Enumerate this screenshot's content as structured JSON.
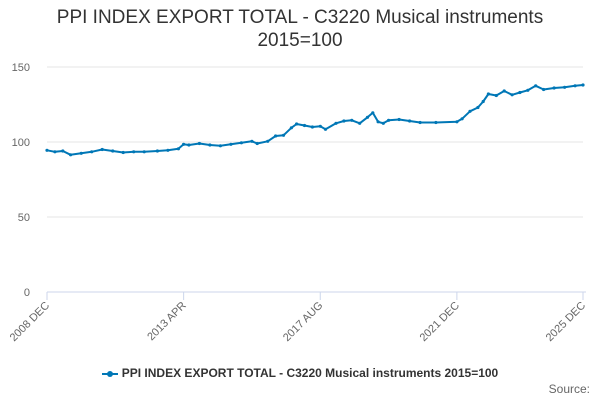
{
  "chart_data": {
    "type": "line",
    "title_line1": "PPI INDEX EXPORT TOTAL - C3220 Musical instruments",
    "title_line2": "2015=100",
    "xlabel": "",
    "ylabel": "",
    "ylim": [
      0,
      150
    ],
    "yticks": [
      0,
      50,
      100,
      150
    ],
    "xticks": [
      "2008 DEC",
      "2013 APR",
      "2017 AUG",
      "2021 DEC",
      "2025 DEC"
    ],
    "x_range": [
      "2008 DEC",
      "2025 DEC"
    ],
    "grid": "horizontal",
    "legend_position": "bottom",
    "series": [
      {
        "name": "PPI INDEX EXPORT TOTAL - C3220 Musical instruments 2015=100",
        "color": "#0077b6",
        "points": [
          [
            "2008 DEC",
            94.5
          ],
          [
            "2009 MAR",
            93.5
          ],
          [
            "2009 JUN",
            94.0
          ],
          [
            "2009 SEP",
            91.5
          ],
          [
            "2010 JAN",
            92.5
          ],
          [
            "2010 MAY",
            93.5
          ],
          [
            "2010 SEP",
            95.0
          ],
          [
            "2011 JAN",
            94.0
          ],
          [
            "2011 MAY",
            93.0
          ],
          [
            "2011 SEP",
            93.5
          ],
          [
            "2012 JAN",
            93.5
          ],
          [
            "2012 JUN",
            94.0
          ],
          [
            "2012 OCT",
            94.5
          ],
          [
            "2013 FEB",
            95.5
          ],
          [
            "2013 APR",
            98.5
          ],
          [
            "2013 JUN",
            98.0
          ],
          [
            "2013 OCT",
            99.0
          ],
          [
            "2014 FEB",
            98.0
          ],
          [
            "2014 JUN",
            97.5
          ],
          [
            "2014 OCT",
            98.5
          ],
          [
            "2015 FEB",
            99.5
          ],
          [
            "2015 JUN",
            100.5
          ],
          [
            "2015 AUG",
            99.0
          ],
          [
            "2015 DEC",
            100.5
          ],
          [
            "2016 MAR",
            104.0
          ],
          [
            "2016 JUN",
            104.5
          ],
          [
            "2016 SEP",
            109.5
          ],
          [
            "2016 NOV",
            112.0
          ],
          [
            "2017 FEB",
            111.0
          ],
          [
            "2017 MAY",
            110.0
          ],
          [
            "2017 AUG",
            110.5
          ],
          [
            "2017 OCT",
            108.5
          ],
          [
            "2018 FEB",
            112.5
          ],
          [
            "2018 MAY",
            114.0
          ],
          [
            "2018 AUG",
            114.5
          ],
          [
            "2018 NOV",
            112.5
          ],
          [
            "2019 FEB",
            116.5
          ],
          [
            "2019 APR",
            119.5
          ],
          [
            "2019 JUN",
            113.5
          ],
          [
            "2019 AUG",
            112.5
          ],
          [
            "2019 OCT",
            114.5
          ],
          [
            "2020 FEB",
            115.0
          ],
          [
            "2020 JUN",
            114.0
          ],
          [
            "2020 OCT",
            113.0
          ],
          [
            "2021 APR",
            113.0
          ],
          [
            "2021 DEC",
            113.5
          ],
          [
            "2022 FEB",
            115.5
          ],
          [
            "2022 MAY",
            120.5
          ],
          [
            "2022 AUG",
            123.0
          ],
          [
            "2022 OCT",
            127.0
          ],
          [
            "2022 DEC",
            132.0
          ],
          [
            "2023 MAR",
            131.0
          ],
          [
            "2023 JUN",
            134.0
          ],
          [
            "2023 SEP",
            131.5
          ],
          [
            "2023 DEC",
            133.0
          ],
          [
            "2024 MAR",
            134.5
          ],
          [
            "2024 JUN",
            137.5
          ],
          [
            "2024 SEP",
            135.0
          ],
          [
            "2025 JAN",
            136.0
          ],
          [
            "2025 MAY",
            136.5
          ],
          [
            "2025 SEP",
            137.5
          ],
          [
            "2025 DEC",
            138.0
          ]
        ]
      }
    ]
  },
  "source_label": "Source:"
}
